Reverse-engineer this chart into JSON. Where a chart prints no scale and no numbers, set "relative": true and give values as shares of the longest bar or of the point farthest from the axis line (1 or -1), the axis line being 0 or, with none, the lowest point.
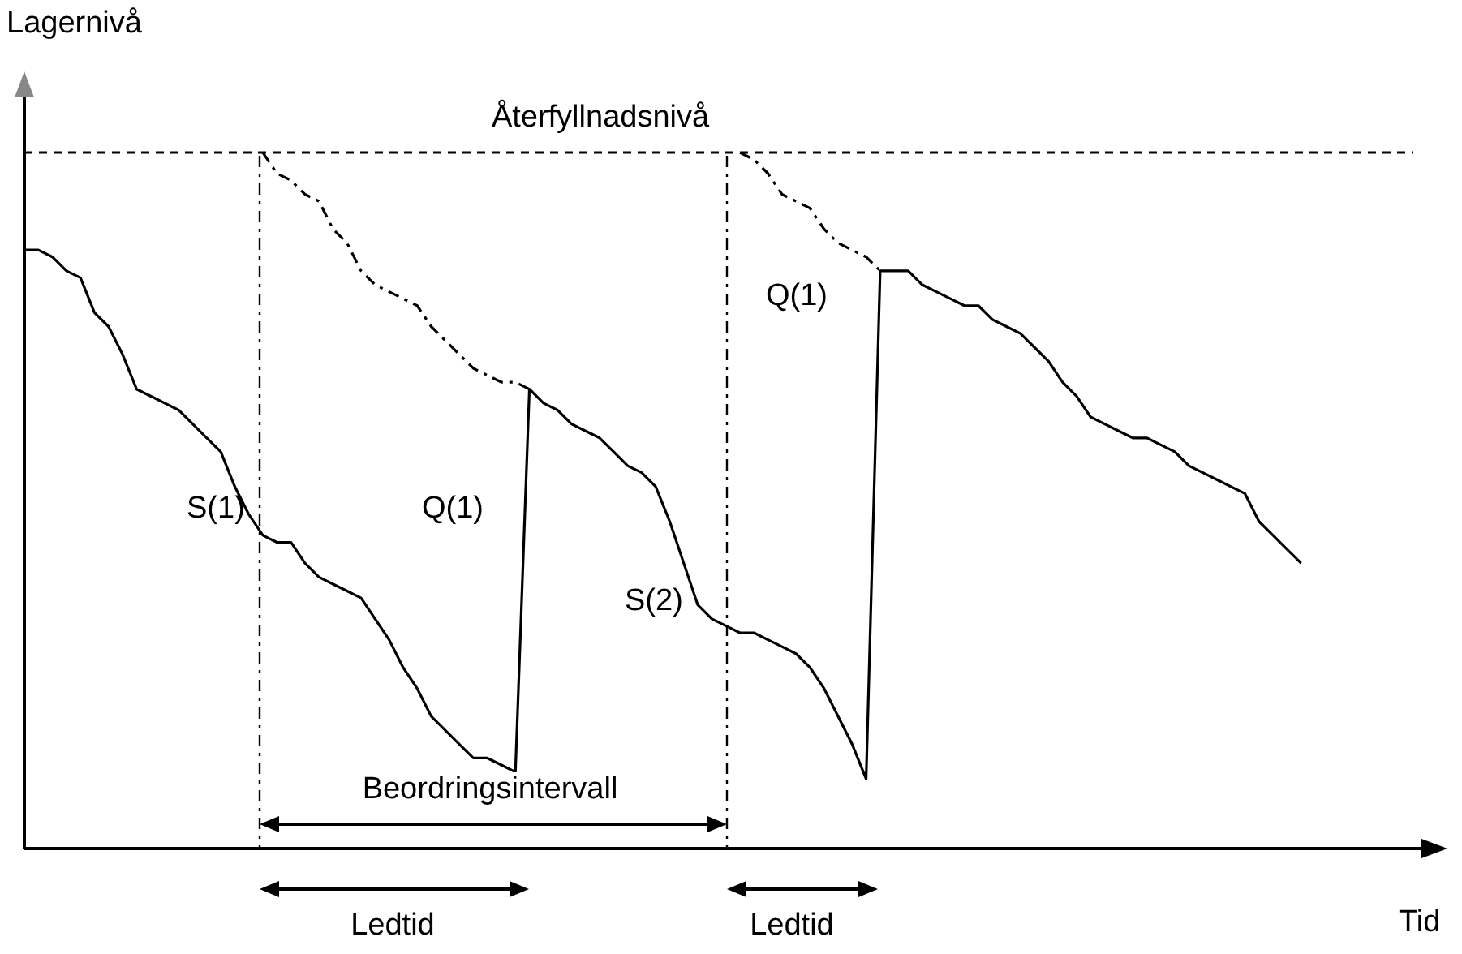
{
  "chart_data": {
    "type": "line",
    "relative": true,
    "xlabel": "Tid",
    "ylabel": "Lagernivå",
    "categories": [
      null,
      null,
      null,
      null,
      null,
      null,
      null,
      null,
      null,
      null,
      null,
      null,
      null,
      null,
      null,
      null,
      null,
      null,
      null,
      null,
      null,
      null,
      null,
      null,
      null,
      null,
      null,
      null,
      null,
      null,
      null,
      null,
      null,
      null,
      null,
      null,
      null,
      null,
      null,
      null,
      null,
      null,
      null,
      null,
      null,
      null,
      null,
      null,
      null,
      null,
      null,
      null,
      null,
      null,
      null,
      null,
      null,
      null,
      null,
      null,
      null,
      null,
      null,
      null,
      null,
      null,
      null,
      null,
      null,
      null,
      null,
      null,
      null,
      null,
      null,
      null,
      null,
      null,
      null,
      null,
      null,
      null,
      null,
      null,
      null,
      null,
      null,
      null,
      null,
      null,
      null,
      null,
      null,
      null,
      null,
      null,
      null,
      null,
      null,
      null
    ],
    "series": [
      {
        "color": "#000000",
        "line_style": "solid",
        "values": [
          0.86,
          0.86,
          0.85,
          0.83,
          0.82,
          0.77,
          0.75,
          0.71,
          0.66,
          0.65,
          0.64,
          0.63,
          0.61,
          0.59,
          0.57,
          0.52,
          0.48,
          0.45,
          0.44,
          0.44,
          0.41,
          0.39,
          0.38,
          0.37,
          0.36,
          0.33,
          0.3,
          0.26,
          0.23,
          0.19,
          0.17,
          0.15,
          0.13,
          0.13,
          0.12,
          0.11,
          0.66,
          0.64,
          0.63,
          0.61,
          0.6,
          0.59,
          0.57,
          0.55,
          0.54,
          0.52,
          0.47,
          0.41,
          0.35,
          0.33,
          0.32,
          0.31,
          0.31,
          0.3,
          0.29,
          0.28,
          0.26,
          0.23,
          0.19,
          0.15,
          0.1,
          0.83,
          0.83,
          0.83,
          0.81,
          0.8,
          0.79,
          0.78,
          0.78,
          0.76,
          0.75,
          0.74,
          0.72,
          0.7,
          0.67,
          0.65,
          0.62,
          0.61,
          0.6,
          0.59,
          0.59,
          0.58,
          0.57,
          0.55,
          0.54,
          0.53,
          0.52,
          0.51,
          0.47,
          0.45,
          0.43,
          0.41,
          null,
          null,
          null,
          null,
          null,
          null,
          null,
          null
        ]
      },
      {
        "color": "#000000",
        "line_style": "dashed",
        "values": [
          null,
          null,
          null,
          null,
          null,
          null,
          null,
          null,
          null,
          null,
          null,
          null,
          null,
          null,
          null,
          null,
          null,
          1,
          0.97,
          0.96,
          0.94,
          0.93,
          0.89,
          0.87,
          0.83,
          0.81,
          0.8,
          0.79,
          0.78,
          0.75,
          0.73,
          0.71,
          0.69,
          0.68,
          0.67,
          0.67,
          0.66,
          null,
          null,
          null,
          null,
          null,
          null,
          null,
          null,
          null,
          null,
          null,
          null,
          null,
          null,
          1,
          0.99,
          0.97,
          0.94,
          0.93,
          0.92,
          0.89,
          0.87,
          0.86,
          0.85,
          0.83,
          null,
          null,
          null,
          null,
          null,
          null,
          null,
          null,
          null,
          null,
          null,
          null,
          null,
          null,
          null,
          null,
          null,
          null,
          null,
          null,
          null,
          null,
          null,
          null,
          null,
          null,
          null,
          null,
          null,
          null,
          null,
          null,
          null,
          null,
          null,
          null,
          null,
          null
        ]
      }
    ],
    "ref_lines": [
      {
        "axis": "y",
        "value": 1,
        "label": "Återfyllnadsnivå",
        "line_style": "dashed",
        "color": "#000000"
      }
    ],
    "annotations": [
      "S(1)",
      "Q(1)",
      "S(2)",
      "Q(1)",
      "Beordringsintervall",
      "Ledtid",
      "Ledtid"
    ]
  }
}
